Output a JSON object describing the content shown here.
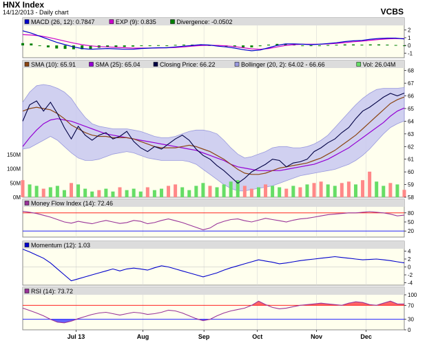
{
  "header": {
    "title": "HNX Index",
    "subtitle": "14/12/2013 - Daily chart",
    "brand": "VCBS"
  },
  "colors": {
    "macd": "#0000cc",
    "exp": "#cc00cc",
    "divergence": "#008000",
    "sma10": "#8b4513",
    "sma25": "#9400d3",
    "close": "#000044",
    "bollinger_fill": "#c8c8f0",
    "bollinger_line": "#9999dd",
    "volume": "#66dd66",
    "volume_up": "#ff8888",
    "mfi": "#993399",
    "mfi_ref80": "#ff0000",
    "mfi_ref20": "#0000ff",
    "momentum": "#0000cc",
    "rsi": "#993399",
    "rsi_fill_hi": "#ff6666",
    "rsi_fill_lo": "#6666ff",
    "panel_bg": "#ffffee",
    "legend_bg": "#dcdcdc"
  },
  "chart_data": [
    {
      "type": "line",
      "panel": "macd",
      "legend": [
        {
          "id": "macd",
          "label": "MACD (26, 12): 0.7847",
          "color": "#0000cc"
        },
        {
          "id": "exp",
          "label": "EXP (9): 0.835",
          "color": "#cc00cc"
        },
        {
          "id": "div",
          "label": "Divergence: -0.0502",
          "color": "#008000"
        }
      ],
      "yticks": [
        2,
        1,
        0,
        -1
      ],
      "ylim": [
        -1.6,
        2.6
      ],
      "macd": [
        1.9,
        1.6,
        1.2,
        0.8,
        0.4,
        0.1,
        -0.2,
        -0.4,
        -0.5,
        -0.45,
        -0.4,
        -0.45,
        -0.5,
        -0.5,
        -0.4,
        -0.35,
        -0.3,
        -0.3,
        -0.2,
        -0.1,
        0.0,
        0.1,
        0.05,
        -0.1,
        -0.2,
        -0.35,
        -0.55,
        -0.7,
        -0.6,
        -0.3,
        0.0,
        0.2,
        0.2,
        0.15,
        0.1,
        0.15,
        0.25,
        0.35,
        0.5,
        0.6,
        0.65,
        0.8,
        0.9,
        0.95,
        0.95,
        0.85
      ],
      "exp": [
        1.4,
        1.35,
        1.25,
        1.05,
        0.8,
        0.55,
        0.3,
        0.1,
        -0.05,
        -0.15,
        -0.2,
        -0.25,
        -0.3,
        -0.35,
        -0.35,
        -0.35,
        -0.33,
        -0.3,
        -0.27,
        -0.2,
        -0.1,
        -0.02,
        0.02,
        0.0,
        -0.05,
        -0.15,
        -0.3,
        -0.45,
        -0.5,
        -0.4,
        -0.2,
        0.0,
        0.1,
        0.15,
        0.15,
        0.15,
        0.2,
        0.27,
        0.37,
        0.47,
        0.55,
        0.67,
        0.77,
        0.85,
        0.9,
        0.88
      ],
      "divergence": [
        0.3,
        0.25,
        0.0,
        -0.25,
        -0.4,
        -0.45,
        -0.5,
        -0.5,
        -0.45,
        -0.3,
        -0.2,
        -0.2,
        -0.2,
        -0.15,
        -0.05,
        0.0,
        0.03,
        0.0,
        0.07,
        0.1,
        0.1,
        0.12,
        0.03,
        -0.1,
        -0.15,
        -0.2,
        -0.25,
        -0.25,
        -0.1,
        0.1,
        0.2,
        0.2,
        0.1,
        0.0,
        -0.05,
        0.0,
        0.05,
        0.08,
        0.13,
        0.13,
        0.1,
        0.13,
        0.13,
        0.1,
        0.05,
        -0.05
      ]
    },
    {
      "type": "line",
      "panel": "price",
      "legend": [
        {
          "id": "sma10",
          "label": "SMA (10): 65.91",
          "color": "#8b4513"
        },
        {
          "id": "sma25",
          "label": "SMA (25): 65.04",
          "color": "#9400d3"
        },
        {
          "id": "close",
          "label": "Closing Price: 66.22",
          "color": "#000044"
        },
        {
          "id": "boll",
          "label": "Bollinger (20, 2): 64.02 - 66.66",
          "color": "#9999dd"
        },
        {
          "id": "vol",
          "label": "Vol: 26.04M",
          "color": "#66dd66"
        }
      ],
      "yticks": [
        68,
        67,
        66,
        65,
        64,
        63,
        62,
        61,
        60,
        59,
        58
      ],
      "ylim": [
        58,
        68.2
      ],
      "vol_ticks": [
        "150M",
        "100M",
        "50M",
        "0M"
      ],
      "vol_max": 150,
      "close": [
        64.0,
        65.3,
        65.6,
        64.8,
        65.5,
        64.6,
        63.5,
        62.6,
        63.6,
        62.9,
        62.5,
        62.9,
        63.1,
        62.6,
        62.8,
        63.2,
        62.4,
        61.9,
        61.6,
        62.0,
        61.8,
        62.2,
        62.6,
        62.9,
        62.5,
        61.8,
        61.3,
        61.0,
        60.5,
        60.1,
        59.6,
        59.1,
        59.5,
        60.0,
        60.3,
        60.6,
        61.0,
        60.9,
        60.4,
        60.7,
        60.8,
        61.0,
        61.6,
        61.9,
        62.3,
        62.6,
        63.1,
        63.5,
        64.2,
        64.8,
        65.1,
        65.5,
        65.9,
        66.2,
        66.0,
        66.22
      ],
      "sma10": [
        64.8,
        65.0,
        65.1,
        65.0,
        64.9,
        64.6,
        64.2,
        63.7,
        63.4,
        63.1,
        62.9,
        62.8,
        62.8,
        62.7,
        62.7,
        62.7,
        62.6,
        62.4,
        62.2,
        62.0,
        61.9,
        61.9,
        61.9,
        62.0,
        62.1,
        62.0,
        61.8,
        61.6,
        61.3,
        61.0,
        60.6,
        60.2,
        59.9,
        59.8,
        59.8,
        59.9,
        60.1,
        60.3,
        60.4,
        60.5,
        60.6,
        60.7,
        60.9,
        61.1,
        61.4,
        61.7,
        62.1,
        62.5,
        62.9,
        63.4,
        63.9,
        64.4,
        64.9,
        65.4,
        65.7,
        65.91
      ],
      "sma25": [
        62.0,
        62.7,
        63.3,
        63.8,
        64.1,
        64.2,
        64.1,
        64.0,
        63.8,
        63.6,
        63.4,
        63.2,
        63.0,
        62.9,
        62.8,
        62.7,
        62.6,
        62.5,
        62.4,
        62.3,
        62.2,
        62.1,
        62.0,
        61.9,
        61.8,
        61.7,
        61.5,
        61.3,
        61.1,
        60.9,
        60.6,
        60.4,
        60.3,
        60.2,
        60.1,
        60.1,
        60.1,
        60.1,
        60.2,
        60.3,
        60.4,
        60.5,
        60.6,
        60.8,
        61.0,
        61.3,
        61.6,
        61.9,
        62.3,
        62.7,
        63.1,
        63.5,
        63.9,
        64.4,
        64.8,
        65.04
      ],
      "boll_up": [
        65.5,
        66.3,
        66.8,
        66.9,
        66.8,
        66.6,
        66.3,
        65.8,
        65.0,
        64.3,
        63.8,
        63.6,
        63.5,
        63.4,
        63.4,
        63.4,
        63.3,
        63.2,
        63.0,
        62.8,
        62.7,
        62.7,
        62.8,
        63.0,
        63.2,
        63.3,
        63.3,
        63.2,
        63.0,
        62.5,
        61.9,
        61.4,
        61.1,
        61.2,
        61.4,
        61.6,
        61.9,
        62.0,
        62.0,
        61.9,
        61.9,
        62.0,
        62.2,
        62.5,
        62.9,
        63.5,
        64.1,
        64.7,
        65.3,
        65.8,
        66.2,
        66.5,
        66.6,
        66.6,
        66.6,
        66.66
      ],
      "boll_lo": [
        61.8,
        61.9,
        62.2,
        62.5,
        62.8,
        62.5,
        62.0,
        61.5,
        61.1,
        60.9,
        60.9,
        61.0,
        61.2,
        61.4,
        61.5,
        61.6,
        61.5,
        61.3,
        61.1,
        61.0,
        60.9,
        60.9,
        60.9,
        60.9,
        60.8,
        60.6,
        60.2,
        59.8,
        59.4,
        59.0,
        58.7,
        58.5,
        58.5,
        58.6,
        58.7,
        58.8,
        58.9,
        59.1,
        59.3,
        59.5,
        59.7,
        59.8,
        59.9,
        60.0,
        60.1,
        60.2,
        60.4,
        60.6,
        60.9,
        61.3,
        61.8,
        62.4,
        63.0,
        63.5,
        63.8,
        64.02
      ],
      "volume": [
        60,
        45,
        40,
        30,
        35,
        40,
        25,
        50,
        45,
        30,
        20,
        25,
        30,
        20,
        35,
        25,
        30,
        20,
        35,
        25,
        30,
        40,
        45,
        35,
        25,
        40,
        50,
        40,
        35,
        45,
        55,
        60,
        40,
        30,
        35,
        45,
        40,
        35,
        30,
        40,
        35,
        45,
        50,
        55,
        45,
        40,
        50,
        55,
        45,
        60,
        90,
        55,
        40,
        50,
        45,
        26
      ],
      "volume_up": [
        1,
        0,
        0,
        1,
        0,
        0,
        0,
        1,
        0,
        0,
        0,
        1,
        0,
        0,
        1,
        0,
        0,
        0,
        1,
        0,
        0,
        1,
        1,
        0,
        0,
        0,
        0,
        1,
        0,
        0,
        0,
        0,
        1,
        1,
        0,
        1,
        0,
        0,
        1,
        0,
        1,
        0,
        1,
        1,
        0,
        0,
        1,
        1,
        0,
        1,
        1,
        0,
        0,
        1,
        0,
        1
      ]
    },
    {
      "type": "line",
      "panel": "mfi",
      "legend": [
        {
          "id": "mfi",
          "label": "Money Flow Index (14): 72.46",
          "color": "#993399"
        }
      ],
      "yticks": [
        80,
        50,
        20
      ],
      "ylim": [
        0,
        100
      ],
      "values": [
        85,
        82,
        78,
        72,
        66,
        58,
        50,
        46,
        52,
        48,
        44,
        50,
        55,
        50,
        45,
        48,
        55,
        52,
        44,
        48,
        55,
        60,
        54,
        48,
        40,
        32,
        24,
        30,
        44,
        52,
        58,
        60,
        54,
        50,
        56,
        62,
        58,
        54,
        50,
        56,
        60,
        62,
        66,
        70,
        74,
        76,
        78,
        80,
        80,
        82,
        84,
        82,
        80,
        76,
        70,
        72.46
      ]
    },
    {
      "type": "line",
      "panel": "momentum",
      "legend": [
        {
          "id": "mom",
          "label": "Momentum (12): 1.03",
          "color": "#0000cc"
        }
      ],
      "yticks": [
        4,
        2,
        0,
        -2,
        -4
      ],
      "ylim": [
        -4.6,
        4.6
      ],
      "values": [
        4.5,
        3.8,
        3.0,
        2.2,
        1.0,
        -0.5,
        -2.0,
        -3.5,
        -3.0,
        -2.5,
        -2.0,
        -1.5,
        -1.0,
        -0.5,
        -1.0,
        -0.5,
        -0.3,
        -0.5,
        -0.8,
        -0.2,
        0.3,
        0.0,
        -0.5,
        -1.0,
        -1.5,
        -2.0,
        -2.5,
        -2.0,
        -1.5,
        -0.8,
        -0.2,
        0.3,
        0.8,
        1.3,
        1.8,
        1.5,
        1.2,
        0.8,
        1.0,
        1.3,
        1.6,
        1.8,
        2.0,
        2.2,
        2.4,
        2.6,
        2.4,
        2.2,
        2.0,
        1.8,
        1.9,
        2.0,
        1.8,
        1.6,
        1.3,
        1.03
      ]
    },
    {
      "type": "line",
      "panel": "rsi",
      "legend": [
        {
          "id": "rsi",
          "label": "RSI (14): 73.72",
          "color": "#993399"
        }
      ],
      "yticks": [
        100,
        70,
        30,
        0
      ],
      "ylim": [
        0,
        100
      ],
      "values": [
        62,
        55,
        48,
        40,
        30,
        22,
        20,
        25,
        32,
        38,
        44,
        48,
        50,
        46,
        42,
        46,
        50,
        48,
        44,
        46,
        50,
        56,
        54,
        48,
        40,
        32,
        26,
        30,
        40,
        48,
        54,
        58,
        62,
        70,
        82,
        72,
        64,
        60,
        62,
        66,
        70,
        72,
        74,
        76,
        74,
        72,
        70,
        76,
        80,
        78,
        72,
        70,
        76,
        82,
        74,
        73.72
      ]
    }
  ],
  "xaxis": {
    "labels": [
      "Jul 13",
      "Aug",
      "Sep",
      "Oct",
      "Nov",
      "Dec"
    ],
    "positions": [
      0.14,
      0.315,
      0.475,
      0.615,
      0.77,
      0.9
    ]
  }
}
